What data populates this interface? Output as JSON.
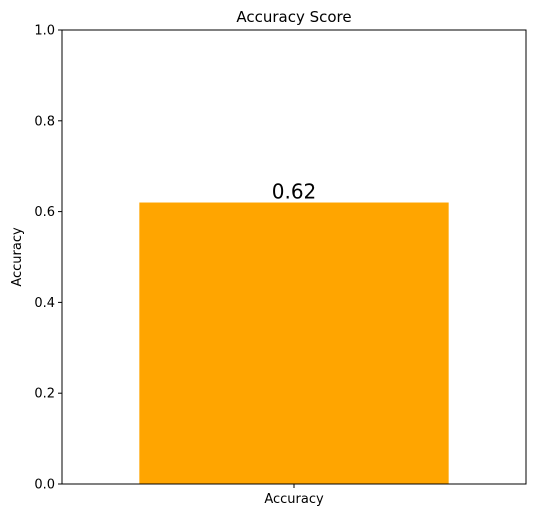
{
  "chart_data": {
    "type": "bar",
    "title": "Accuracy Score",
    "xlabel": "",
    "ylabel": "Accuracy",
    "categories": [
      "Accuracy"
    ],
    "values": [
      0.62
    ],
    "data_labels": [
      "0.62"
    ],
    "ylim": [
      0,
      1
    ],
    "yticks": [
      0.0,
      0.2,
      0.4,
      0.6,
      0.8,
      1.0
    ],
    "ytick_labels": [
      "0.0",
      "0.2",
      "0.4",
      "0.6",
      "0.8",
      "1.0"
    ],
    "grid": false,
    "legend": "none",
    "bar_color": "#FFA500"
  }
}
